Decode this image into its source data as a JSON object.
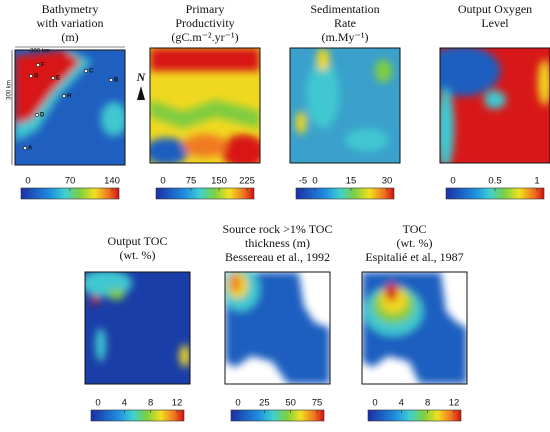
{
  "panels": [
    {
      "title": [
        "Bathymetry",
        "with variation",
        "(m)"
      ],
      "colorbar_ticks": [
        0,
        70,
        140
      ]
    },
    {
      "title": [
        "Primary",
        "Productivity",
        "(gC.m⁻².yr⁻¹)"
      ],
      "colorbar_ticks": [
        0,
        75,
        150,
        225
      ]
    },
    {
      "title": [
        "Sedimentation",
        "Rate",
        "(m.My⁻¹)"
      ],
      "colorbar_ticks": [
        -5,
        0,
        15,
        30
      ]
    },
    {
      "title": [
        "Output Oxygen",
        "Level"
      ],
      "colorbar_ticks": [
        0,
        0.5,
        1
      ]
    },
    {
      "title": [
        "Output TOC",
        "(wt. %)"
      ],
      "colorbar_ticks": [
        0,
        4,
        8,
        12
      ]
    },
    {
      "title": [
        "Source rock >1% TOC",
        "thickness (m)",
        "Bessereau et al., 1992"
      ],
      "colorbar_ticks": [
        0,
        25,
        50,
        75
      ]
    },
    {
      "title": [
        "TOC",
        "(wt. %)",
        "Espitalié et al., 1987"
      ],
      "colorbar_ticks": [
        0,
        4,
        8,
        12
      ]
    }
  ],
  "scale_labels": [
    "300 km",
    "300 km"
  ],
  "sites": [
    "A",
    "B",
    "C",
    "D",
    "E",
    "F",
    "G",
    "H"
  ],
  "north": "N"
}
